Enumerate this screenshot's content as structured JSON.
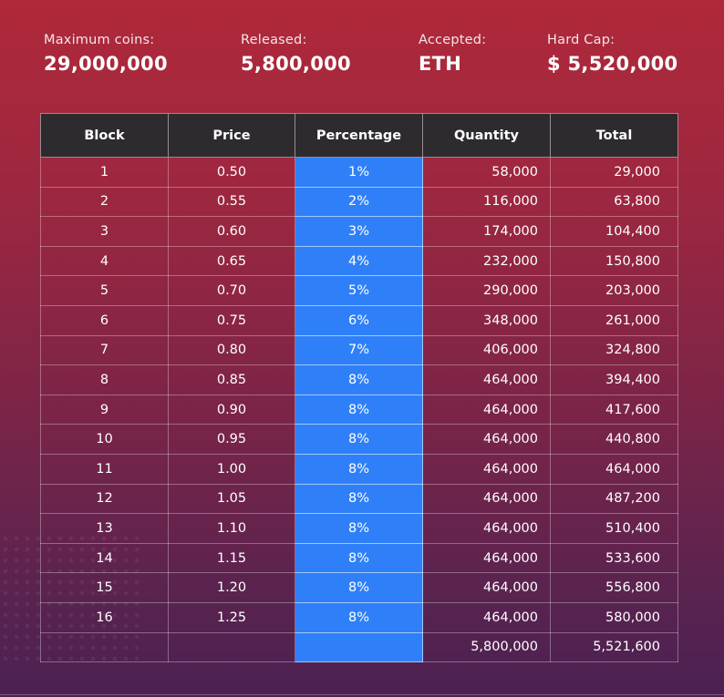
{
  "stats": {
    "max_label": "Maximum coins:",
    "max_value": "29,000,000",
    "released_label": "Released:",
    "released_value": "5,800,000",
    "accepted_label": "Accepted:",
    "accepted_value": "ETH",
    "hardcap_label": "Hard Cap:",
    "hardcap_value": "$ 5,520,000"
  },
  "table": {
    "headers": [
      "Block",
      "Price",
      "Percentage",
      "Quantity",
      "Total"
    ],
    "rows": [
      [
        "1",
        "0.50",
        "1%",
        "58,000",
        "29,000"
      ],
      [
        "2",
        "0.55",
        "2%",
        "116,000",
        "63,800"
      ],
      [
        "3",
        "0.60",
        "3%",
        "174,000",
        "104,400"
      ],
      [
        "4",
        "0.65",
        "4%",
        "232,000",
        "150,800"
      ],
      [
        "5",
        "0.70",
        "5%",
        "290,000",
        "203,000"
      ],
      [
        "6",
        "0.75",
        "6%",
        "348,000",
        "261,000"
      ],
      [
        "7",
        "0.80",
        "7%",
        "406,000",
        "324,800"
      ],
      [
        "8",
        "0.85",
        "8%",
        "464,000",
        "394,400"
      ],
      [
        "9",
        "0.90",
        "8%",
        "464,000",
        "417,600"
      ],
      [
        "10",
        "0.95",
        "8%",
        "464,000",
        "440,800"
      ],
      [
        "11",
        "1.00",
        "8%",
        "464,000",
        "464,000"
      ],
      [
        "12",
        "1.05",
        "8%",
        "464,000",
        "487,200"
      ],
      [
        "13",
        "1.10",
        "8%",
        "464,000",
        "510,400"
      ],
      [
        "14",
        "1.15",
        "8%",
        "464,000",
        "533,600"
      ],
      [
        "15",
        "1.20",
        "8%",
        "464,000",
        "556,800"
      ],
      [
        "16",
        "1.25",
        "8%",
        "464,000",
        "580,000"
      ]
    ],
    "totals": [
      "",
      "",
      "",
      "5,800,000",
      "5,521,600"
    ]
  },
  "colors": {
    "percentage_column": "#2f80f8",
    "header_bg": "#2d2b2e",
    "background_top": "#b0283a",
    "background_bottom": "#4b2152"
  }
}
